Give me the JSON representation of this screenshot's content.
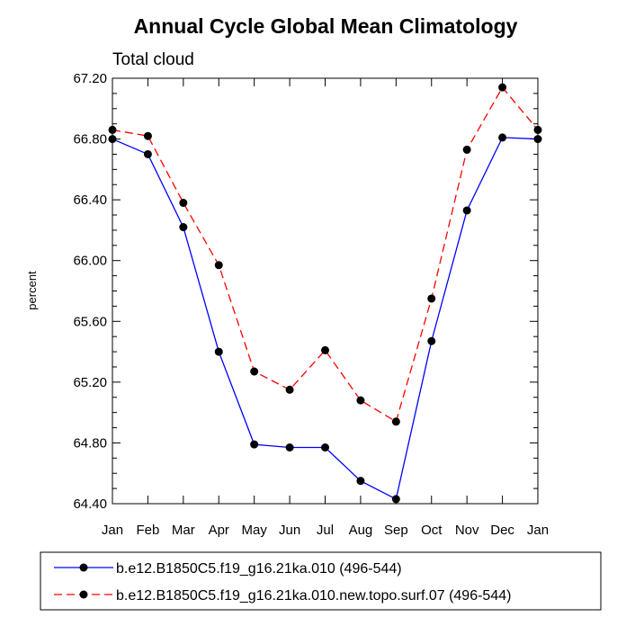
{
  "chart_data": {
    "type": "line",
    "title": "Annual Cycle Global Mean Climatology",
    "subtitle": "Total cloud",
    "xlabel": "",
    "ylabel": "percent",
    "categories": [
      "Jan",
      "Feb",
      "Mar",
      "Apr",
      "May",
      "Jun",
      "Jul",
      "Aug",
      "Sep",
      "Oct",
      "Nov",
      "Dec",
      "Jan"
    ],
    "ylim": [
      64.4,
      67.2
    ],
    "yticks": [
      "64.40",
      "64.80",
      "65.20",
      "65.60",
      "66.00",
      "66.40",
      "66.80",
      "67.20"
    ],
    "grid": false,
    "legend_position": "bottom",
    "series": [
      {
        "name": "b.e12.B1850C5.f19_g16.21ka.010 (496-544)",
        "color": "#0000ff",
        "dash": "solid",
        "values": [
          66.8,
          66.7,
          66.22,
          65.4,
          64.79,
          64.77,
          64.77,
          64.55,
          64.43,
          65.47,
          66.33,
          66.81,
          66.8
        ]
      },
      {
        "name": "b.e12.B1850C5.f19_g16.21ka.010.new.topo.surf.07 (496-544)",
        "color": "#ff0000",
        "dash": "dashed",
        "values": [
          66.86,
          66.82,
          66.38,
          65.97,
          65.27,
          65.15,
          65.41,
          65.08,
          64.94,
          65.75,
          66.73,
          67.14,
          66.86
        ]
      }
    ]
  }
}
